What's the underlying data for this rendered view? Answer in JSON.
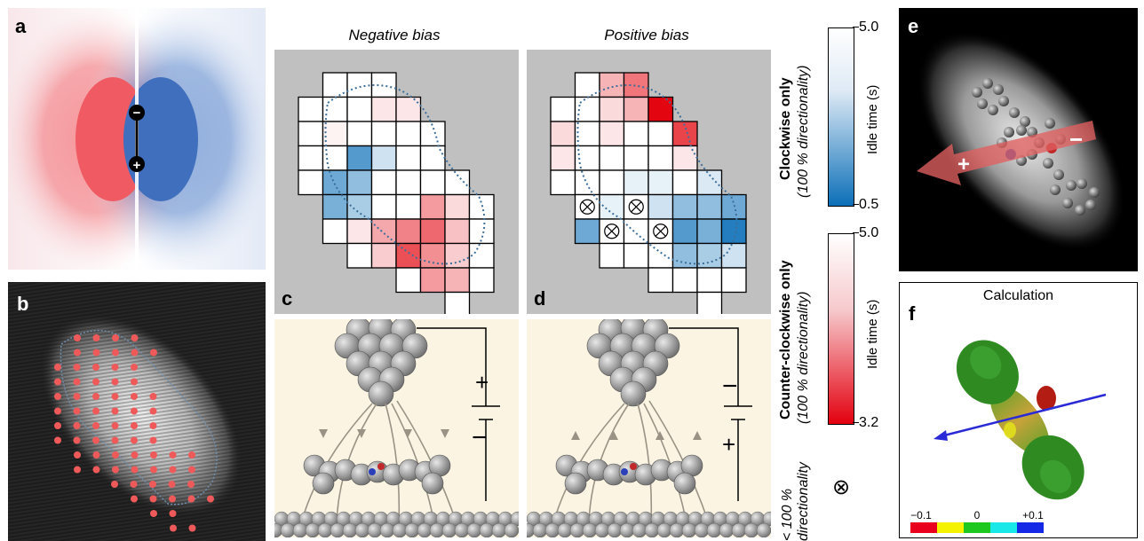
{
  "panels": {
    "a": {
      "label": "a",
      "minus_sign": "−",
      "plus_sign": "+"
    },
    "b": {
      "label": "b"
    },
    "c": {
      "label": "c",
      "title": "Negative bias",
      "battery_top_sign": "+",
      "battery_bottom_sign": "−"
    },
    "d": {
      "label": "d",
      "title": "Positive bias",
      "battery_top_sign": "−",
      "battery_bottom_sign": "+"
    },
    "e": {
      "label": "e",
      "arrow_plus": "+",
      "arrow_minus": "−"
    },
    "f": {
      "label": "f",
      "title": "Calculation",
      "scale_ticks": [
        "−0.1",
        "0",
        "+0.1"
      ],
      "scale_colors": [
        "#e8001c",
        "#f4f200",
        "#1ec81e",
        "#19e8e8",
        "#1428e6"
      ]
    }
  },
  "legend": {
    "clockwise": {
      "title": "Clockwise only",
      "subtitle": "(100 % directionality)",
      "axis_label": "Idle time (s)",
      "max_label": "5.0",
      "min_label": "0.5",
      "color_low": "#ffffff",
      "color_high": "#0b6fb8"
    },
    "counter": {
      "title": "Counter-clockwise only",
      "subtitle": "(100 % directionality)",
      "axis_label": "Idle time (s)",
      "max_label": "5.0",
      "min_label": "3.2",
      "color_low": "#ffffff",
      "color_high": "#e3000f"
    },
    "less_than": {
      "line1": "< 100 %",
      "line2": "directionality",
      "symbol": "⊗"
    }
  },
  "grids": {
    "c_cells": [
      [
        1,
        0,
        0
      ],
      [
        2,
        0,
        0
      ],
      [
        3,
        0,
        0
      ],
      [
        0,
        1,
        0
      ],
      [
        1,
        1,
        0
      ],
      [
        2,
        1,
        0
      ],
      [
        3,
        1,
        0.1
      ],
      [
        4,
        1,
        0.1
      ],
      [
        0,
        2,
        0
      ],
      [
        1,
        2,
        0.05
      ],
      [
        2,
        2,
        0
      ],
      [
        3,
        2,
        0
      ],
      [
        4,
        2,
        0
      ],
      [
        5,
        2,
        0
      ],
      [
        0,
        3,
        0
      ],
      [
        1,
        3,
        0
      ],
      [
        2,
        3,
        -0.7
      ],
      [
        3,
        3,
        -0.2
      ],
      [
        4,
        3,
        0
      ],
      [
        5,
        3,
        0
      ],
      [
        0,
        4,
        0
      ],
      [
        1,
        4,
        -0.6
      ],
      [
        2,
        4,
        -0.45
      ],
      [
        3,
        4,
        0
      ],
      [
        4,
        4,
        0
      ],
      [
        5,
        4,
        0
      ],
      [
        6,
        4,
        0
      ],
      [
        1,
        5,
        -0.55
      ],
      [
        2,
        5,
        -0.35
      ],
      [
        3,
        5,
        0
      ],
      [
        4,
        5,
        0
      ],
      [
        5,
        5,
        0.4
      ],
      [
        6,
        5,
        0.15
      ],
      [
        7,
        5,
        0
      ],
      [
        1,
        6,
        0
      ],
      [
        2,
        6,
        0.1
      ],
      [
        3,
        6,
        0.35
      ],
      [
        4,
        6,
        0.5
      ],
      [
        5,
        6,
        0.6
      ],
      [
        6,
        6,
        0.25
      ],
      [
        7,
        6,
        0
      ],
      [
        2,
        7,
        0
      ],
      [
        3,
        7,
        0.2
      ],
      [
        4,
        7,
        0.7
      ],
      [
        5,
        7,
        0.45
      ],
      [
        6,
        7,
        0.2
      ],
      [
        7,
        7,
        0
      ],
      [
        4,
        8,
        0
      ],
      [
        5,
        8,
        0.4
      ],
      [
        6,
        8,
        0.3
      ],
      [
        7,
        8,
        0
      ],
      [
        6,
        9,
        0
      ]
    ],
    "d_cells": [
      [
        1,
        0,
        0
      ],
      [
        2,
        0,
        0.3
      ],
      [
        3,
        0,
        0.55
      ],
      [
        0,
        1,
        0
      ],
      [
        1,
        1,
        0
      ],
      [
        2,
        1,
        0.15
      ],
      [
        3,
        1,
        0.3
      ],
      [
        4,
        1,
        1
      ],
      [
        0,
        2,
        0.15
      ],
      [
        1,
        2,
        0
      ],
      [
        2,
        2,
        0.1
      ],
      [
        3,
        2,
        0
      ],
      [
        4,
        2,
        0
      ],
      [
        5,
        2,
        0.75
      ],
      [
        0,
        3,
        0.1
      ],
      [
        1,
        3,
        0
      ],
      [
        2,
        3,
        0
      ],
      [
        3,
        3,
        0
      ],
      [
        4,
        3,
        0
      ],
      [
        5,
        3,
        0.1
      ],
      [
        0,
        4,
        0
      ],
      [
        1,
        4,
        0
      ],
      [
        2,
        4,
        0
      ],
      [
        3,
        4,
        -0.1
      ],
      [
        4,
        4,
        -0.1
      ],
      [
        5,
        4,
        0
      ],
      [
        6,
        4,
        -0.15
      ],
      [
        1,
        5,
        "x"
      ],
      [
        2,
        5,
        -0.1
      ],
      [
        3,
        5,
        "x"
      ],
      [
        4,
        5,
        -0.2
      ],
      [
        5,
        5,
        -0.45
      ],
      [
        6,
        5,
        -0.45
      ],
      [
        7,
        5,
        -0.6
      ],
      [
        1,
        6,
        -0.6
      ],
      [
        2,
        6,
        "x"
      ],
      [
        3,
        6,
        0
      ],
      [
        4,
        6,
        "x"
      ],
      [
        5,
        6,
        -0.7
      ],
      [
        6,
        6,
        -0.55
      ],
      [
        7,
        6,
        -0.9
      ],
      [
        2,
        7,
        0
      ],
      [
        3,
        7,
        0
      ],
      [
        4,
        7,
        0
      ],
      [
        5,
        7,
        -0.45
      ],
      [
        6,
        7,
        -0.35
      ],
      [
        7,
        7,
        -0.2
      ],
      [
        4,
        8,
        0
      ],
      [
        5,
        8,
        0
      ],
      [
        6,
        8,
        0
      ],
      [
        7,
        8,
        0
      ],
      [
        6,
        9,
        0
      ]
    ]
  }
}
